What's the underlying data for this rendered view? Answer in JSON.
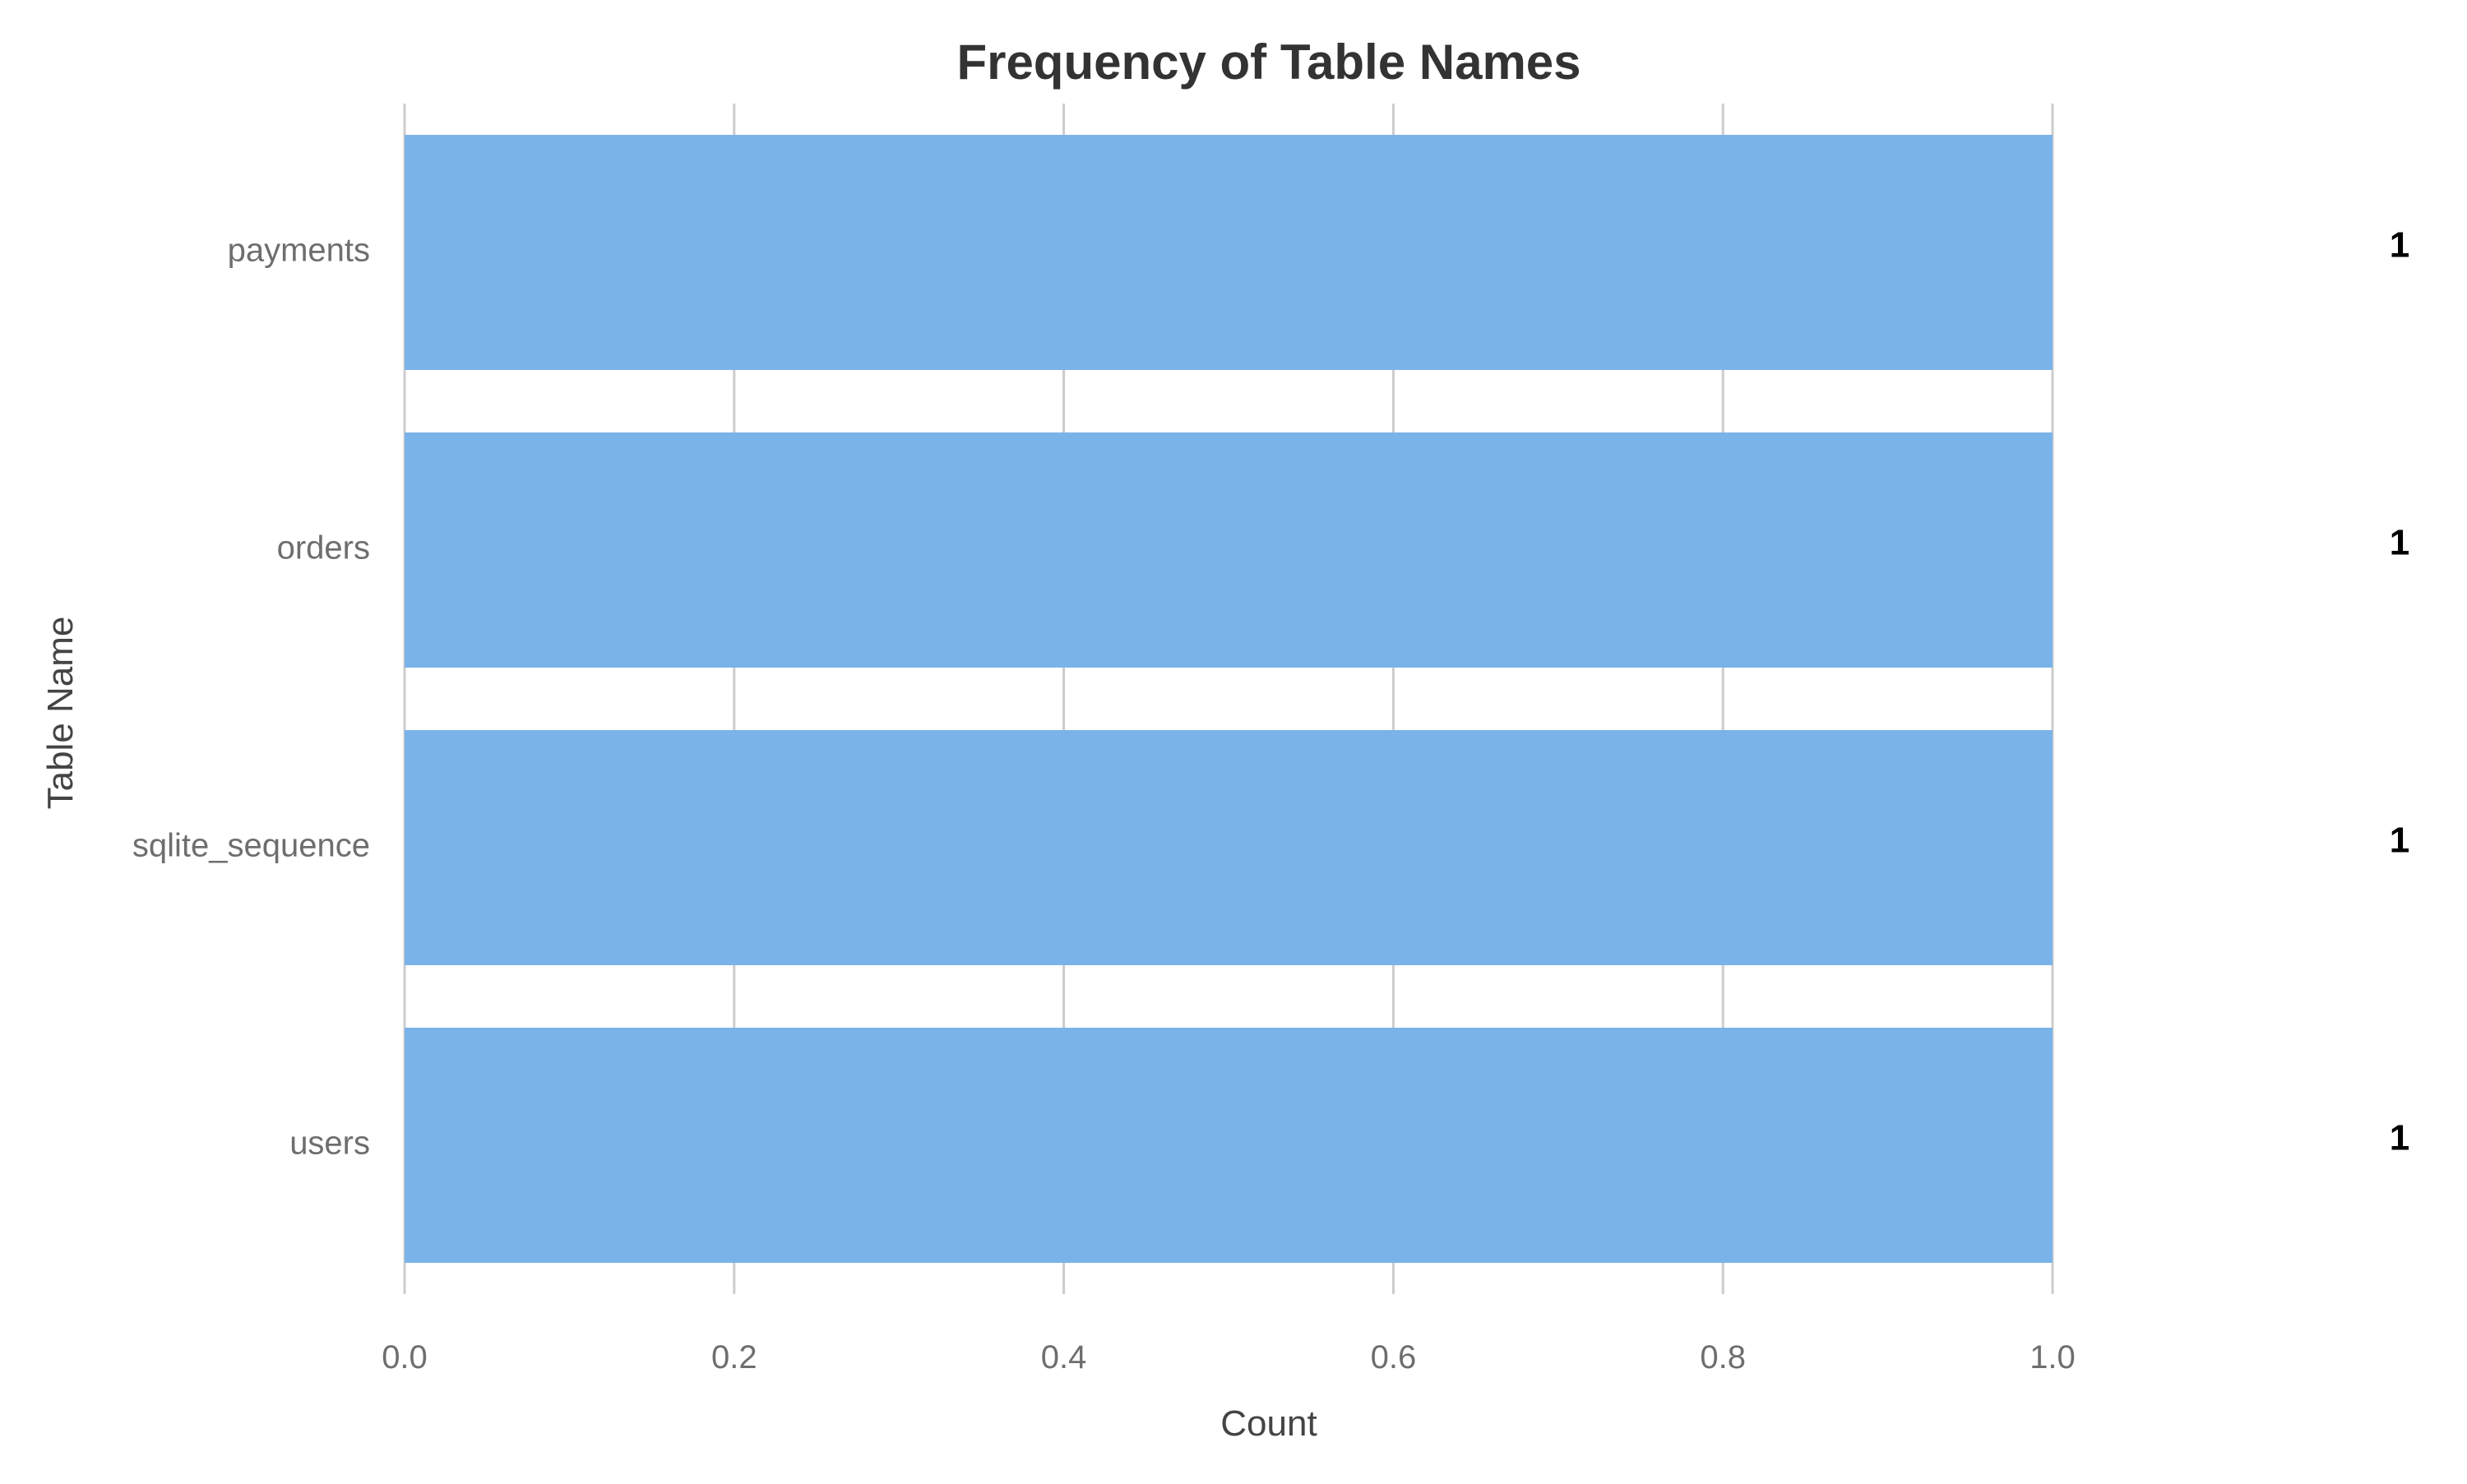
{
  "chart_data": {
    "type": "bar",
    "orientation": "horizontal",
    "title": "Frequency of Table Names",
    "xlabel": "Count",
    "ylabel": "Table Name",
    "categories": [
      "payments",
      "orders",
      "sqlite_sequence",
      "users"
    ],
    "values": [
      1,
      1,
      1,
      1
    ],
    "data_labels": [
      "1",
      "1",
      "1",
      "1"
    ],
    "xlim": [
      0,
      1
    ],
    "x_ticks": [
      "0.0",
      "0.2",
      "0.4",
      "0.6",
      "0.8",
      "1.0"
    ],
    "grid": "vertical",
    "legend": "none",
    "colors": {
      "bar": "#7ab3e8",
      "grid": "#cccccc",
      "tick_label": "#6e6e6e",
      "axis_label": "#444444",
      "title": "#333333",
      "data_label": "#000000"
    }
  }
}
